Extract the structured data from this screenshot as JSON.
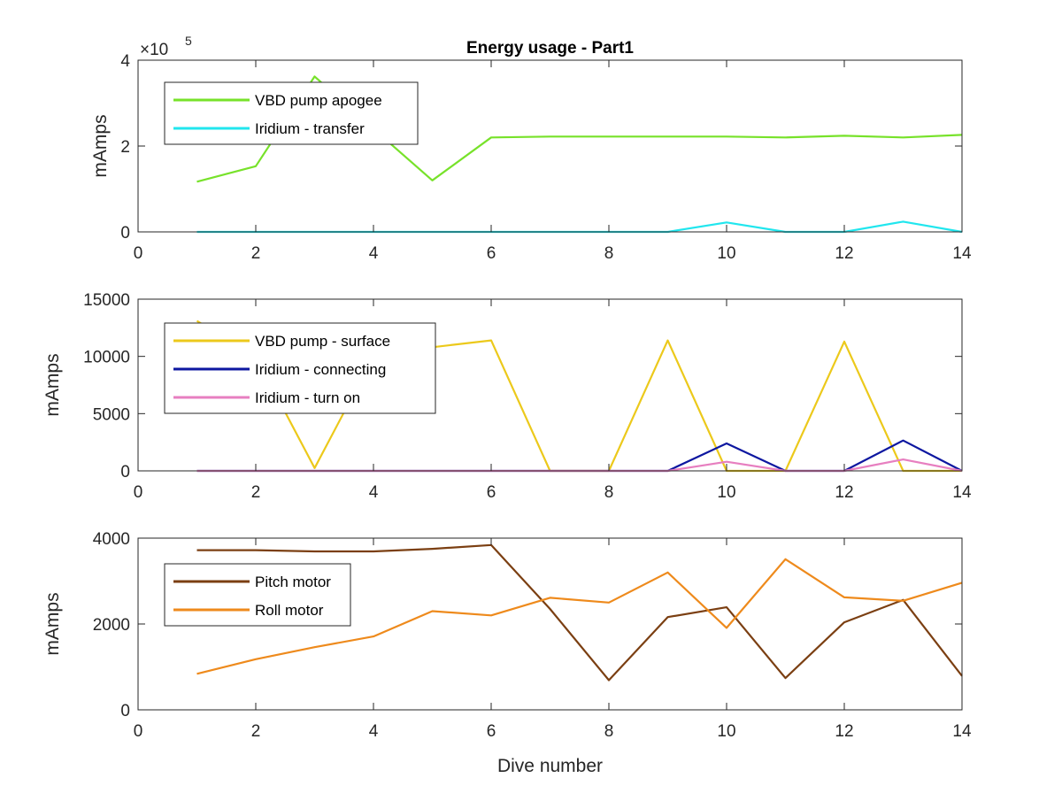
{
  "chart_data": [
    {
      "type": "line",
      "title": "Energy usage - Part1",
      "xlabel": "",
      "ylabel": "mAmps",
      "y_exponent_label": "×10",
      "y_exponent_power": "5",
      "xlim": [
        0,
        14
      ],
      "ylim": [
        0,
        400000
      ],
      "x_ticks": [
        0,
        2,
        4,
        6,
        8,
        10,
        12,
        14
      ],
      "y_ticks": [
        0,
        200000,
        400000
      ],
      "y_tick_labels": [
        "0",
        "2",
        "4"
      ],
      "legend_position": "top-left",
      "x": [
        1,
        2,
        3,
        4,
        5,
        6,
        7,
        8,
        9,
        10,
        11,
        12,
        13,
        14
      ],
      "series": [
        {
          "name": "VBD pump apogee",
          "color": "#77e22a",
          "values": [
            117000,
            153000,
            362000,
            240000,
            120000,
            220000,
            222000,
            222000,
            222000,
            222000,
            220000,
            224000,
            220000,
            226000
          ]
        },
        {
          "name": "Iridium - transfer",
          "color": "#21e6ee",
          "values": [
            0,
            0,
            0,
            0,
            0,
            0,
            0,
            0,
            0,
            22000,
            0,
            0,
            24000,
            0
          ]
        }
      ]
    },
    {
      "type": "line",
      "title": "",
      "xlabel": "",
      "ylabel": "mAmps",
      "xlim": [
        0,
        14
      ],
      "ylim": [
        0,
        15000
      ],
      "x_ticks": [
        0,
        2,
        4,
        6,
        8,
        10,
        12,
        14
      ],
      "y_ticks": [
        0,
        5000,
        10000,
        15000
      ],
      "y_tick_labels": [
        "0",
        "5000",
        "10000",
        "15000"
      ],
      "legend_position": "top-left",
      "x": [
        1,
        2,
        3,
        4,
        5,
        6,
        7,
        8,
        9,
        10,
        11,
        12,
        13,
        14
      ],
      "series": [
        {
          "name": "VBD pump - surface",
          "color": "#ecc91b",
          "values": [
            13100,
            10000,
            250,
            10000,
            10800,
            11400,
            0,
            0,
            11400,
            0,
            0,
            11300,
            0,
            0
          ]
        },
        {
          "name": "Iridium - connecting",
          "color": "#0d17a0",
          "values": [
            0,
            0,
            0,
            0,
            0,
            0,
            0,
            0,
            0,
            2400,
            0,
            0,
            2650,
            0
          ]
        },
        {
          "name": "Iridium - turn on",
          "color": "#e77fc0",
          "values": [
            0,
            0,
            0,
            0,
            0,
            0,
            0,
            0,
            0,
            800,
            0,
            0,
            1000,
            0
          ]
        }
      ]
    },
    {
      "type": "line",
      "title": "",
      "xlabel": "Dive number",
      "ylabel": "mAmps",
      "xlim": [
        0,
        14
      ],
      "ylim": [
        0,
        4000
      ],
      "x_ticks": [
        0,
        2,
        4,
        6,
        8,
        10,
        12,
        14
      ],
      "y_ticks": [
        0,
        2000,
        4000
      ],
      "y_tick_labels": [
        "0",
        "2000",
        "4000"
      ],
      "legend_position": "top-left",
      "x": [
        1,
        2,
        3,
        4,
        5,
        6,
        7,
        8,
        9,
        10,
        11,
        12,
        13,
        14
      ],
      "series": [
        {
          "name": "Pitch motor",
          "color": "#7b3f12",
          "values": [
            3720,
            3720,
            3690,
            3690,
            3750,
            3840,
            2350,
            690,
            2160,
            2390,
            740,
            2040,
            2560,
            790
          ]
        },
        {
          "name": "Roll motor",
          "color": "#ee8a1c",
          "values": [
            840,
            1180,
            1460,
            1710,
            2300,
            2200,
            2610,
            2500,
            3200,
            1910,
            3510,
            2620,
            2540,
            2960
          ]
        }
      ]
    }
  ]
}
